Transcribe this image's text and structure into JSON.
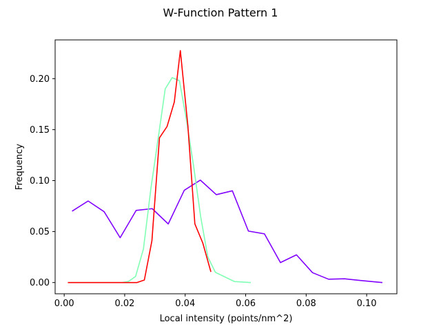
{
  "chart_data": {
    "type": "line",
    "title": "W-Function Pattern 1",
    "xlabel": "Local intensity (points/nm^2)",
    "ylabel": "Frequency",
    "xlim": [
      -0.003,
      0.11
    ],
    "ylim": [
      -0.011,
      0.238
    ],
    "x_ticks": [
      0.0,
      0.02,
      0.04,
      0.06,
      0.08,
      0.1
    ],
    "x_tick_labels": [
      "0.00",
      "0.02",
      "0.04",
      "0.06",
      "0.08",
      "0.10"
    ],
    "y_ticks": [
      0.0,
      0.05,
      0.1,
      0.15,
      0.2
    ],
    "y_tick_labels": [
      "0.00",
      "0.05",
      "0.10",
      "0.15",
      "0.20"
    ],
    "grid": false,
    "series": [
      {
        "color": "#8000ff",
        "x": [
          0.0026,
          0.0079,
          0.0132,
          0.0185,
          0.0238,
          0.0291,
          0.0344,
          0.0397,
          0.045,
          0.0503,
          0.0556,
          0.0609,
          0.0662,
          0.0715,
          0.0768,
          0.0821,
          0.0874,
          0.0927,
          0.098,
          0.1052
        ],
        "y": [
          0.07,
          0.08,
          0.0695,
          0.044,
          0.0708,
          0.0725,
          0.0575,
          0.0905,
          0.1005,
          0.0862,
          0.09,
          0.0505,
          0.0478,
          0.0196,
          0.0272,
          0.0097,
          0.0033,
          0.0037,
          0.002,
          0.0
        ]
      },
      {
        "color": "#80ffb4",
        "x": [
          0.0015,
          0.005,
          0.0085,
          0.012,
          0.0155,
          0.019,
          0.0212,
          0.0236,
          0.0262,
          0.0287,
          0.031,
          0.0334,
          0.0357,
          0.0381,
          0.0404,
          0.0428,
          0.0451,
          0.0475,
          0.05,
          0.0563,
          0.0617
        ],
        "y": [
          0.0,
          0.0,
          0.0,
          0.0,
          0.0,
          0.0,
          0.001,
          0.006,
          0.033,
          0.093,
          0.14,
          0.19,
          0.201,
          0.198,
          0.16,
          0.114,
          0.065,
          0.025,
          0.01,
          0.001,
          0.0
        ]
      },
      {
        "color": "#ff0000",
        "x": [
          0.0012,
          0.006,
          0.011,
          0.016,
          0.021,
          0.024,
          0.0265,
          0.029,
          0.0315,
          0.034,
          0.0364,
          0.0384,
          0.0409,
          0.0432,
          0.0458,
          0.0485
        ],
        "y": [
          0.0,
          0.0,
          0.0,
          0.0,
          0.0,
          0.0,
          0.0025,
          0.041,
          0.142,
          0.153,
          0.177,
          0.2275,
          0.1535,
          0.0575,
          0.039,
          0.0105
        ]
      }
    ]
  }
}
